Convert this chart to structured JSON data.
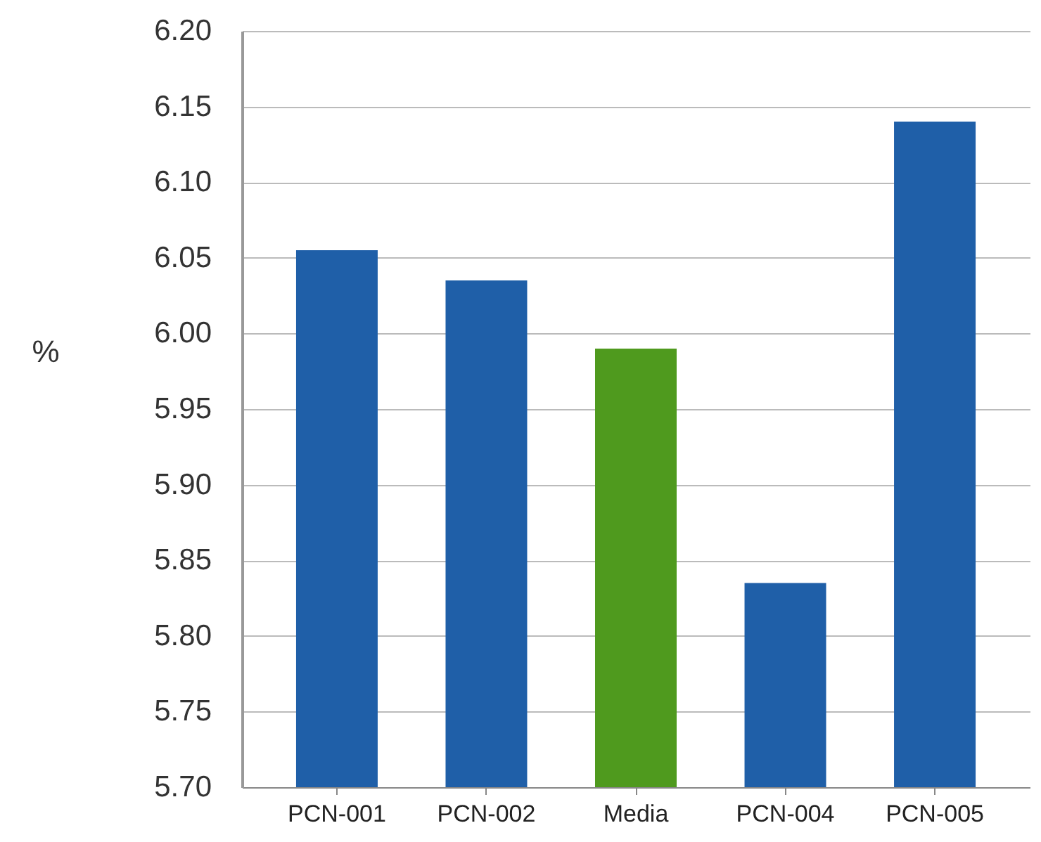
{
  "chart_data": {
    "type": "bar",
    "ylabel": "%",
    "categories": [
      "PCN-001",
      "PCN-002",
      "Media",
      "PCN-004",
      "PCN-005"
    ],
    "values": [
      6.055,
      6.035,
      5.99,
      5.835,
      6.14
    ],
    "colors": [
      "#1f5fa8",
      "#1f5fa8",
      "#4f9a1e",
      "#1f5fa8",
      "#1f5fa8"
    ],
    "ylim": [
      5.7,
      6.2
    ],
    "yticks": [
      {
        "value": 5.7,
        "label": "5.70"
      },
      5.75,
      {
        "value": 5.8,
        "label": "5.80"
      },
      5.85,
      {
        "value": 5.9,
        "label": "5.90"
      },
      5.95,
      {
        "value": 6.0,
        "label": "6.00"
      },
      6.05,
      {
        "value": 6.1,
        "label": "6.10"
      },
      6.15,
      {
        "value": 6.2,
        "label": "6.20"
      }
    ],
    "grid": "y"
  }
}
